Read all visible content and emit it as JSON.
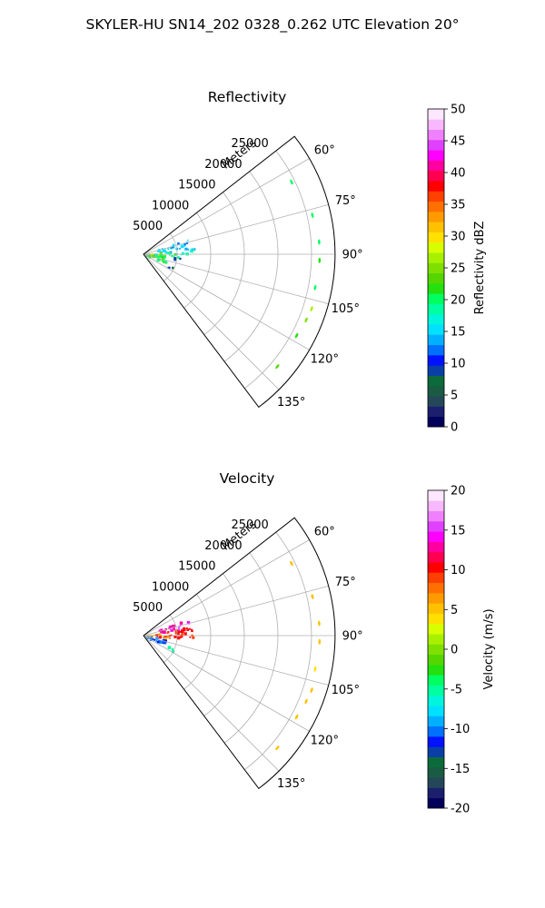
{
  "figure": {
    "suptitle": "SKYLER-HU  SN14_202  0328_0.262 UTC Elevation 20°"
  },
  "chart_data": [
    {
      "type": "heatmap",
      "subtype": "polar-sector radar PPI",
      "title": "Reflectivity",
      "radial_label": "Meters",
      "range_ticks": [
        "5000",
        "10000",
        "15000",
        "20000",
        "25000"
      ],
      "range_tick_values": [
        5000,
        10000,
        15000,
        20000,
        25000
      ],
      "range_max": 28500,
      "azimuth_ticks": [
        "60°",
        "75°",
        "90°",
        "105°",
        "120°",
        "135°"
      ],
      "azimuth_tick_values": [
        60,
        75,
        90,
        105,
        120,
        135
      ],
      "azimuth_range": [
        52,
        143
      ],
      "grid": true,
      "colorbar": {
        "label": "Reflectivity dBZ",
        "vmin": 0,
        "vmax": 50,
        "ticks": [
          "0",
          "5",
          "10",
          "15",
          "20",
          "25",
          "30",
          "35",
          "40",
          "45",
          "50"
        ],
        "tick_values": [
          0,
          5,
          10,
          15,
          20,
          25,
          30,
          35,
          40,
          45,
          50
        ]
      },
      "echo_regions": [
        {
          "az": [
            70,
            84
          ],
          "r": [
            2000,
            7800
          ],
          "values": [
            12,
            16
          ]
        },
        {
          "az": [
            80,
            92
          ],
          "r": [
            300,
            3200
          ],
          "values": [
            24,
            32
          ]
        },
        {
          "az": [
            84,
            94
          ],
          "r": [
            1500,
            7200
          ],
          "values": [
            16,
            22
          ]
        },
        {
          "az": [
            94,
            112
          ],
          "r": [
            300,
            3500
          ],
          "values": [
            18,
            24
          ]
        },
        {
          "az": [
            94,
            100
          ],
          "r": [
            4200,
            5400
          ],
          "values": [
            8,
            12
          ]
        },
        {
          "az": [
            112,
            118
          ],
          "r": [
            4000,
            5000
          ],
          "values": [
            8,
            11
          ]
        }
      ],
      "far_echoes": [
        {
          "az": 64,
          "r": 24500,
          "value": 20
        },
        {
          "az": 77,
          "r": 25800,
          "value": 20
        },
        {
          "az": 86,
          "r": 26200,
          "value": 20
        },
        {
          "az": 92,
          "r": 26200,
          "value": 22
        },
        {
          "az": 101,
          "r": 26000,
          "value": 20
        },
        {
          "az": 108,
          "r": 26300,
          "value": 26
        },
        {
          "az": 112,
          "r": 26100,
          "value": 25
        },
        {
          "az": 118,
          "r": 25800,
          "value": 22
        },
        {
          "az": 130,
          "r": 26000,
          "value": 24
        }
      ]
    },
    {
      "type": "heatmap",
      "subtype": "polar-sector radar PPI",
      "title": "Velocity",
      "radial_label": "Meters",
      "range_ticks": [
        "5000",
        "10000",
        "15000",
        "20000",
        "25000"
      ],
      "range_tick_values": [
        5000,
        10000,
        15000,
        20000,
        25000
      ],
      "range_max": 28500,
      "azimuth_ticks": [
        "60°",
        "75°",
        "90°",
        "105°",
        "120°",
        "135°"
      ],
      "azimuth_tick_values": [
        60,
        75,
        90,
        105,
        120,
        135
      ],
      "azimuth_range": [
        52,
        143
      ],
      "grid": true,
      "colorbar": {
        "label": "Velocity (m/s)",
        "vmin": -20,
        "vmax": 20,
        "ticks": [
          "-20",
          "-15",
          "-10",
          "-5",
          "0",
          "5",
          "10",
          "15",
          "20"
        ],
        "tick_values": [
          -20,
          -15,
          -10,
          -5,
          0,
          5,
          10,
          15,
          20
        ]
      },
      "echo_regions": [
        {
          "az": [
            68,
            80
          ],
          "r": [
            2200,
            7000
          ],
          "values": [
            12,
            15
          ]
        },
        {
          "az": [
            78,
            92
          ],
          "r": [
            1800,
            7600
          ],
          "values": [
            9,
            11
          ]
        },
        {
          "az": [
            80,
            92
          ],
          "r": [
            300,
            2500
          ],
          "values": [
            5,
            7
          ]
        },
        {
          "az": [
            90,
            96
          ],
          "r": [
            2800,
            4200
          ],
          "values": [
            5,
            8
          ]
        },
        {
          "az": [
            94,
            112
          ],
          "r": [
            300,
            3500
          ],
          "values": [
            -12,
            -8
          ]
        },
        {
          "az": [
            112,
            118
          ],
          "r": [
            3500,
            5000
          ],
          "values": [
            -6,
            -4
          ]
        }
      ],
      "far_echoes": [
        {
          "az": 64,
          "r": 24500,
          "value": 5
        },
        {
          "az": 77,
          "r": 25800,
          "value": 5
        },
        {
          "az": 86,
          "r": 26200,
          "value": 5
        },
        {
          "az": 92,
          "r": 26200,
          "value": 5
        },
        {
          "az": 101,
          "r": 26000,
          "value": 4
        },
        {
          "az": 108,
          "r": 26300,
          "value": 5
        },
        {
          "az": 112,
          "r": 26100,
          "value": 5
        },
        {
          "az": 118,
          "r": 25800,
          "value": 5
        },
        {
          "az": 130,
          "r": 26000,
          "value": 5
        }
      ]
    }
  ],
  "colormaps": {
    "reflectivity": [
      "#02005a",
      "#1b1f6e",
      "#24485a",
      "#1a5c43",
      "#0b6b3a",
      "#0a3fa8",
      "#0012ff",
      "#0070ff",
      "#00b0ff",
      "#00e0ff",
      "#00f5dc",
      "#00ffa0",
      "#00ff60",
      "#23e00e",
      "#55d600",
      "#7fe000",
      "#a8f000",
      "#d8ff00",
      "#ffe000",
      "#ffc000",
      "#ff9a00",
      "#ff7000",
      "#ff4000",
      "#ff0000",
      "#ff0050",
      "#ff00a0",
      "#ff00ff",
      "#e040ff",
      "#f080ff",
      "#f8b8ff",
      "#fde6ff"
    ],
    "velocity": [
      "#02005a",
      "#1b1f6e",
      "#24485a",
      "#1a5c43",
      "#0b6b3a",
      "#0a3fa8",
      "#0012ff",
      "#0070ff",
      "#00b0ff",
      "#00e0ff",
      "#00f5dc",
      "#00ffa0",
      "#00ff60",
      "#23e00e",
      "#55d600",
      "#7fe000",
      "#a8f000",
      "#d8ff00",
      "#ffe000",
      "#ffc000",
      "#ff9a00",
      "#ff7000",
      "#ff4000",
      "#ff0000",
      "#ff0050",
      "#ff00a0",
      "#ff00ff",
      "#e040ff",
      "#f080ff",
      "#f8b8ff",
      "#fde6ff"
    ]
  }
}
